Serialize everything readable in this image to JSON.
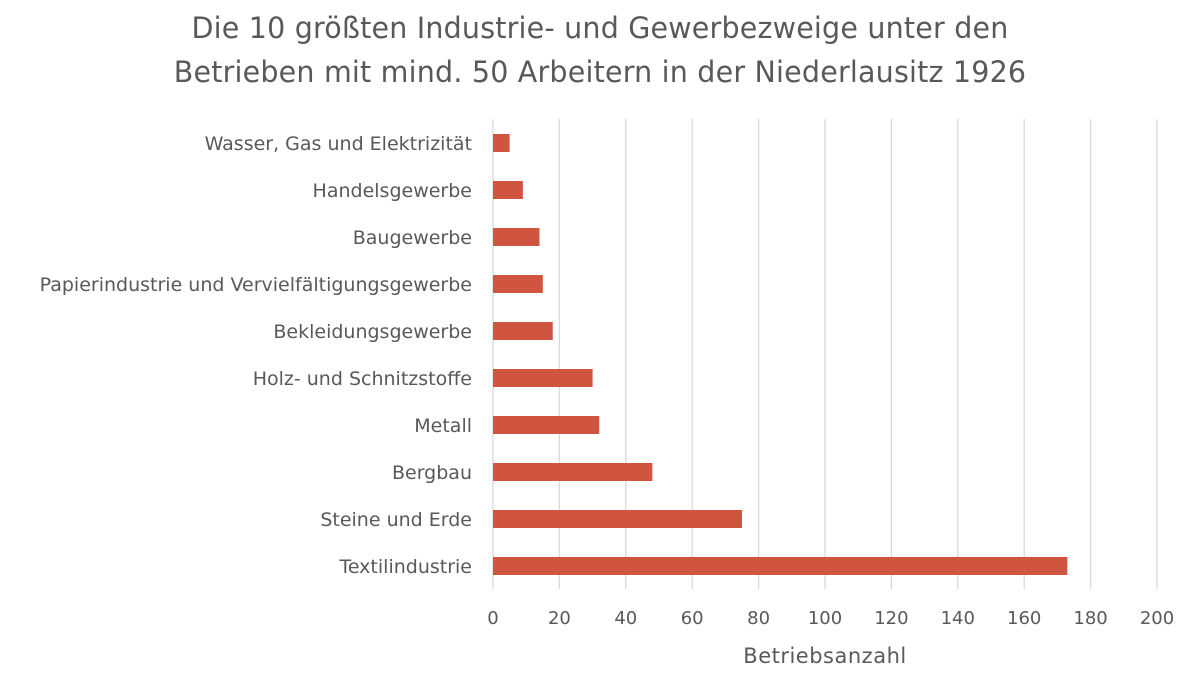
{
  "chart_data": {
    "type": "bar",
    "orientation": "horizontal",
    "title": [
      "Die 10 größten Industrie- und Gewerbezweige unter den",
      "Betrieben mit mind. 50 Arbeitern in der Niederlausitz 1926"
    ],
    "xlabel": "Betriebsanzahl",
    "ylabel": "",
    "categories": [
      "Wasser, Gas und Elektrizität",
      "Handelsgewerbe",
      "Baugewerbe",
      "Papierindustrie und Vervielfältigungsgewerbe",
      "Bekleidungsgewerbe",
      "Holz- und Schnitzstoffe",
      "Metall",
      "Bergbau",
      "Steine und Erde",
      "Textilindustrie"
    ],
    "values": [
      5,
      9,
      14,
      15,
      18,
      30,
      32,
      48,
      75,
      173
    ],
    "xlim": [
      0,
      200
    ],
    "xticks": [
      "0",
      "20",
      "40",
      "60",
      "80",
      "100",
      "120",
      "140",
      "160",
      "180",
      "200"
    ],
    "grid": "vertical",
    "legend": "none",
    "bar_color": "#D05540",
    "grid_color": "#D9D9D9"
  }
}
